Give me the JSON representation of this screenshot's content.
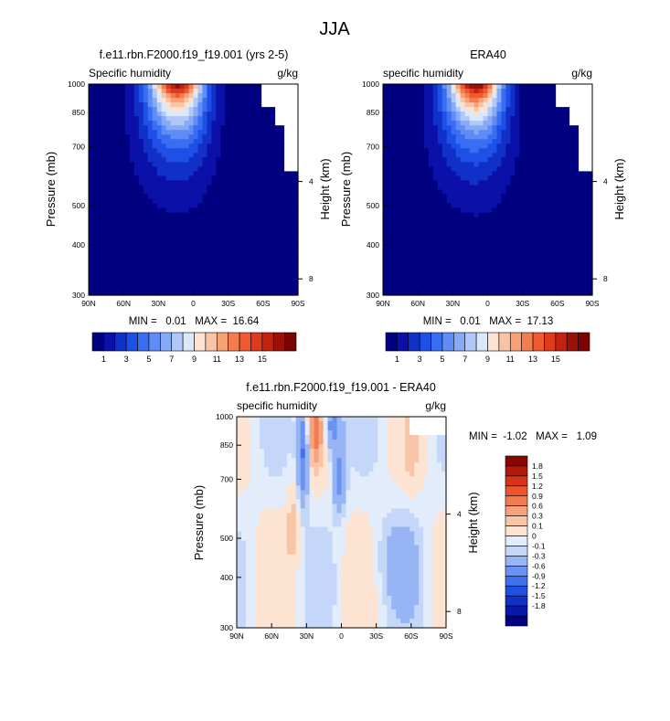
{
  "figure": {
    "title": "JJA"
  },
  "colors": {
    "seq": [
      "#000080",
      "#0a10a8",
      "#1030c8",
      "#1e50e8",
      "#3a6ef2",
      "#5f8df5",
      "#86aaf6",
      "#b0c8f7",
      "#dbe8fb",
      "#fbe2d2",
      "#f9c3a5",
      "#f7a177",
      "#f47d50",
      "#ef5a30",
      "#e03a1e",
      "#c2220f",
      "#9c1008",
      "#7a0404"
    ],
    "diff": [
      "#000080",
      "#0818a8",
      "#1030c8",
      "#2050e0",
      "#4070f0",
      "#6a92f2",
      "#97b4f5",
      "#c5d7f8",
      "#e2ecfb",
      "#fde3d2",
      "#f9c5a9",
      "#f6a27b",
      "#f27c51",
      "#ea5530",
      "#d63418",
      "#b01a0a",
      "#8a0505"
    ]
  },
  "chart_data": [
    {
      "id": "model",
      "type": "contour",
      "title": "f.e11.rbn.F2000.f19_f19.001 (yrs 2-5)",
      "left_label": "Specific humidity",
      "right_label": "g/kg",
      "ylabel": "Pressure (mb)",
      "y2label": "Height (km)",
      "x_ticks": [
        "90N",
        "60N",
        "30N",
        "0",
        "30S",
        "60S",
        "90S"
      ],
      "y_ticks": [
        "300",
        "400",
        "500",
        "700",
        "850",
        "1000"
      ],
      "y2_ticks": [
        "8",
        "4"
      ],
      "xlim": [
        90,
        -90
      ],
      "ylim": [
        1000,
        300
      ],
      "min_max_text": "MIN =   0.01   MAX =  16.64",
      "min": 0.01,
      "max": 16.64,
      "peak_lat": 13,
      "peak_value": 16.6
    },
    {
      "id": "obs",
      "type": "contour",
      "title": "ERA40",
      "left_label": "specific humidity",
      "right_label": "g/kg",
      "ylabel": "Pressure (mb)",
      "y2label": "Height (km)",
      "x_ticks": [
        "90N",
        "60N",
        "30N",
        "0",
        "30S",
        "60S",
        "90S"
      ],
      "y_ticks": [
        "300",
        "400",
        "500",
        "700",
        "850",
        "1000"
      ],
      "y2_ticks": [
        "8",
        "4"
      ],
      "xlim": [
        90,
        -90
      ],
      "ylim": [
        1000,
        300
      ],
      "min_max_text": "MIN =   0.01   MAX =  17.13",
      "min": 0.01,
      "max": 17.13,
      "peak_lat": 10,
      "peak_value": 17.1
    },
    {
      "id": "diff",
      "type": "contour",
      "title": "f.e11.rbn.F2000.f19_f19.001 - ERA40",
      "left_label": "specific humidity",
      "right_label": "g/kg",
      "ylabel": "Pressure (mb)",
      "y2label": "Height (km)",
      "x_ticks": [
        "90N",
        "60N",
        "30N",
        "0",
        "30S",
        "60S",
        "90S"
      ],
      "y_ticks": [
        "300",
        "400",
        "500",
        "700",
        "850",
        "1000"
      ],
      "y2_ticks": [
        "8",
        "4"
      ],
      "xlim": [
        90,
        -90
      ],
      "ylim": [
        1000,
        300
      ],
      "min_max_text": "MIN =  -1.02   MAX =   1.09",
      "min": -1.02,
      "max": 1.09
    }
  ],
  "colorbar_seq": {
    "labels": [
      "1",
      "3",
      "5",
      "7",
      "9",
      "11",
      "13",
      "15"
    ]
  },
  "colorbar_diff": {
    "labels": [
      "1.8",
      "1.5",
      "1.2",
      "0.9",
      "0.6",
      "0.3",
      "0.1",
      "0",
      "-0.1",
      "-0.3",
      "-0.6",
      "-0.9",
      "-1.2",
      "-1.5",
      "-1.8"
    ]
  }
}
